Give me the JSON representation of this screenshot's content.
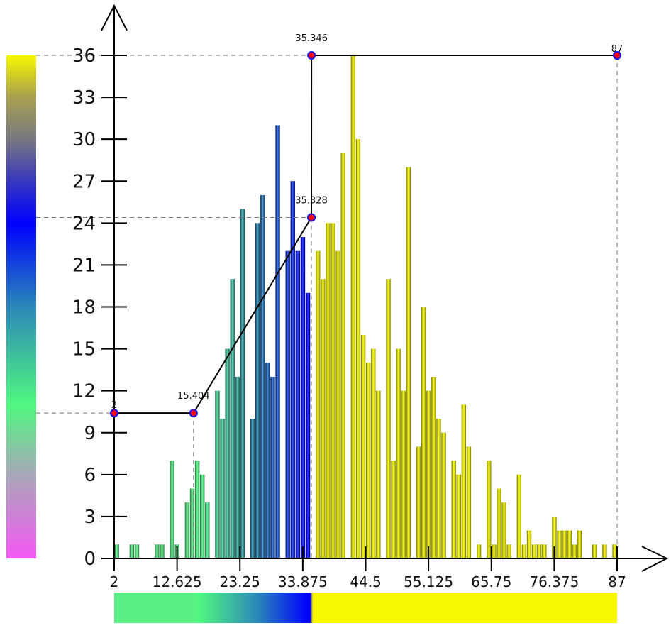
{
  "chart_data": {
    "type": "bar",
    "title": "",
    "xlabel": "",
    "ylabel": "",
    "xlim": [
      2,
      87
    ],
    "ylim": [
      0,
      36
    ],
    "grid": false,
    "bin_count": 100,
    "x_ticks": [
      "2",
      "12.625",
      "23.25",
      "33.875",
      "44.5",
      "55.125",
      "65.75",
      "76.375",
      "87"
    ],
    "x_tick_values": [
      2,
      12.625,
      23.25,
      33.875,
      44.5,
      55.125,
      65.75,
      76.375,
      87
    ],
    "y_ticks": [
      "0",
      "3",
      "6",
      "9",
      "12",
      "15",
      "18",
      "21",
      "24",
      "27",
      "30",
      "33",
      "36"
    ],
    "y_tick_values": [
      0,
      3,
      6,
      9,
      12,
      15,
      18,
      21,
      24,
      27,
      30,
      33,
      36
    ],
    "values": [
      1,
      0,
      0,
      1,
      1,
      0,
      0,
      0,
      1,
      1,
      0,
      7,
      1,
      0,
      4,
      5,
      7,
      6,
      4,
      0,
      12,
      10,
      15,
      20,
      13,
      25,
      0,
      10,
      24,
      26,
      14,
      13,
      31,
      0,
      22,
      27,
      22,
      23,
      19,
      0,
      22,
      20,
      24,
      24,
      22,
      29,
      0,
      36,
      30,
      16,
      14,
      15,
      12,
      0,
      20,
      7,
      15,
      12,
      28,
      0,
      8,
      18,
      12,
      13,
      10,
      9,
      0,
      7,
      6,
      11,
      8,
      0,
      1,
      0,
      7,
      1,
      5,
      4,
      1,
      0,
      6,
      1,
      2,
      1,
      1,
      1,
      0,
      3,
      2,
      2,
      2,
      1,
      2,
      0,
      0,
      1,
      0,
      1,
      0,
      1
    ],
    "transfer_function": {
      "points": [
        {
          "x": 2,
          "y": 10.4,
          "label": "2"
        },
        {
          "x": 15.404,
          "y": 10.4,
          "label": "15.404"
        },
        {
          "x": 35.328,
          "y": 24.4,
          "label": "35.328"
        },
        {
          "x": 35.346,
          "y": 36,
          "label": "35.346"
        },
        {
          "x": 87,
          "y": 36,
          "label": "87"
        }
      ]
    },
    "colormap": [
      {
        "v": 0,
        "color": "#f458f4"
      },
      {
        "v": 6,
        "color": "#a8a8b8"
      },
      {
        "v": 11,
        "color": "#50f880"
      },
      {
        "v": 15,
        "color": "#3cb8a0"
      },
      {
        "v": 18,
        "color": "#2a88b8"
      },
      {
        "v": 24,
        "color": "#0000ff"
      },
      {
        "v": 27,
        "color": "#3838c0"
      },
      {
        "v": 30,
        "color": "#787880"
      },
      {
        "v": 33,
        "color": "#a8a050"
      },
      {
        "v": 36,
        "color": "#f8f800"
      }
    ],
    "colors": {
      "axis": "#000000",
      "point_fill": "#ff0000",
      "point_stroke": "#1010ff",
      "guide": "#777777"
    }
  }
}
